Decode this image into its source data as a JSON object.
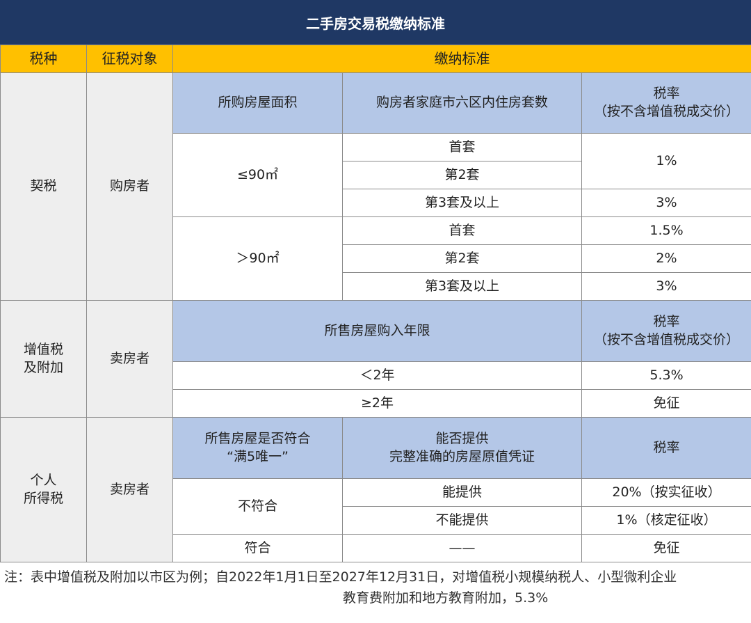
{
  "title": "二手房交易税缴纳标准",
  "header": {
    "tax_type": "税种",
    "object": "征税对象",
    "standard": "缴纳标准"
  },
  "deed_tax": {
    "name": "契税",
    "object": "购房者",
    "col_area": "所购房屋面积",
    "col_count": "购房者家庭市六区内住房套数",
    "col_rate_1": "税率",
    "col_rate_2": "（按不含增值税成交价）",
    "small": {
      "area": "≤90㎡",
      "first": "首套",
      "second": "第2套",
      "third": "第3套及以上",
      "rate_12": "1%",
      "rate_3": "3%"
    },
    "large": {
      "area": "＞90㎡",
      "first": "首套",
      "second": "第2套",
      "third": "第3套及以上",
      "rate_1": "1.5%",
      "rate_2": "2%",
      "rate_3": "3%"
    }
  },
  "vat": {
    "name_1": "增值税",
    "name_2": "及附加",
    "object": "卖房者",
    "col_years": "所售房屋购入年限",
    "col_rate_1": "税率",
    "col_rate_2": "（按不含增值税成交价）",
    "row1_years": "＜2年",
    "row1_rate": "5.3%",
    "row2_years": "≥2年",
    "row2_rate": "免征"
  },
  "income_tax": {
    "name_1": "个人",
    "name_2": "所得税",
    "object": "卖房者",
    "col_cond_1": "所售房屋是否符合",
    "col_cond_2": "“满5唯一”",
    "col_proof_1": "能否提供",
    "col_proof_2": "完整准确的房屋原值凭证",
    "col_rate": "税率",
    "not_match": "不符合",
    "can": "能提供",
    "can_rate": "20%（按实征收）",
    "cannot": "不能提供",
    "cannot_rate": "1%（核定征收）",
    "match": "符合",
    "match_proof": "——",
    "match_rate": "免征"
  },
  "note": {
    "line1": "注：表中增值税及附加以市区为例；自2022年1月1日至2027年12月31日，对增值税小规模纳税人、小型微利企业",
    "line2": "教育费附加和地方教育附加，5.3%"
  }
}
